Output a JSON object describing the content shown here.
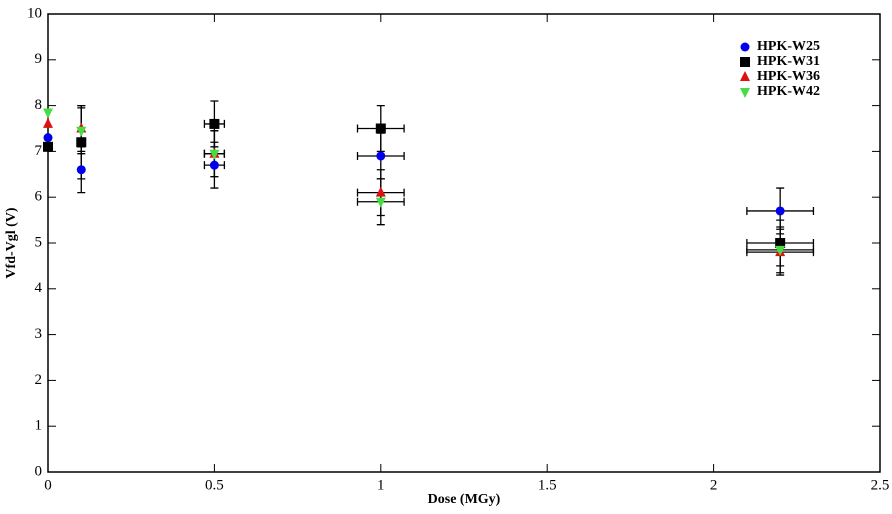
{
  "chart_data": {
    "type": "scatter",
    "x_label": "Dose (MGy)",
    "y_label": "Vfd-Vgl (V)",
    "xlim": [
      0,
      2.5
    ],
    "ylim": [
      0,
      10
    ],
    "xticks": [
      0,
      0.5,
      1,
      1.5,
      2,
      2.5
    ],
    "yticks": [
      0,
      1,
      2,
      3,
      4,
      5,
      6,
      7,
      8,
      9,
      10
    ],
    "legend": "top-right",
    "series": [
      {
        "name": "HPK-W25",
        "color": "#0000ee",
        "marker": "circle",
        "x": [
          0,
          0.1,
          0.5,
          1,
          2.2
        ],
        "values": [
          7.3,
          6.6,
          6.7,
          6.9,
          5.7
        ],
        "xerr": [
          0,
          0,
          0.03,
          0.07,
          0.1
        ],
        "yerr": [
          0,
          0.5,
          0.5,
          0.5,
          0.5
        ]
      },
      {
        "name": "HPK-W31",
        "color": "#000000",
        "marker": "square",
        "x": [
          0,
          0.1,
          0.5,
          1,
          2.2
        ],
        "values": [
          7.1,
          7.2,
          7.6,
          7.5,
          5.0
        ],
        "xerr": [
          0,
          0,
          0.03,
          0.07,
          0.1
        ],
        "yerr": [
          0,
          0.8,
          0.5,
          0.5,
          0.5
        ]
      },
      {
        "name": "HPK-W36",
        "color": "#dd1111",
        "marker": "triangle-up",
        "x": [
          0,
          0.1,
          0.5,
          1,
          2.2
        ],
        "values": [
          7.6,
          7.5,
          6.95,
          6.1,
          4.8
        ],
        "xerr": [
          0,
          0,
          0.03,
          0.07,
          0.1
        ],
        "yerr": [
          0,
          0.5,
          0.5,
          0.5,
          0.5
        ]
      },
      {
        "name": "HPK-W42",
        "color": "#44dd44",
        "marker": "triangle-down",
        "x": [
          0,
          0.1,
          0.5,
          1,
          2.2
        ],
        "values": [
          7.85,
          7.45,
          6.95,
          5.9,
          4.85
        ],
        "xerr": [
          0,
          0,
          0.03,
          0.07,
          0.1
        ],
        "yerr": [
          0,
          0.5,
          0.5,
          0.5,
          0.5
        ]
      }
    ]
  }
}
